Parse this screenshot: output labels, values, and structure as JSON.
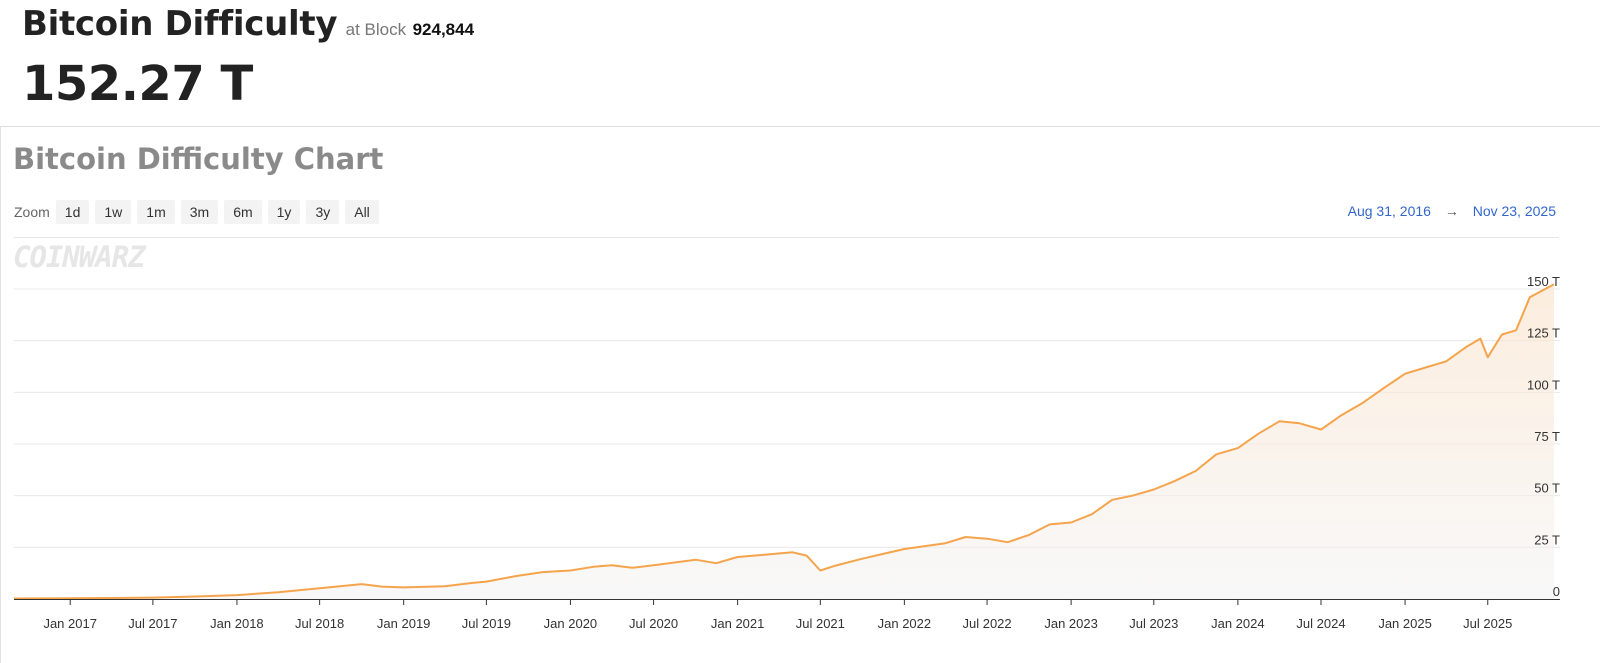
{
  "header": {
    "title": "Bitcoin Difficulty",
    "at_block_label": "at Block",
    "block_number": "924,844",
    "current_value": "152.27 T"
  },
  "chart_section": {
    "title": "Bitcoin Difficulty Chart",
    "zoom_label": "Zoom",
    "zoom_buttons": [
      "1d",
      "1w",
      "1m",
      "3m",
      "6m",
      "1y",
      "3y",
      "All"
    ],
    "range_start": "Aug 31, 2016",
    "range_arrow": "→",
    "range_end": "Nov 23, 2025",
    "watermark": "COINWARZ"
  },
  "chart_data": {
    "type": "area",
    "title": "",
    "xlabel": "",
    "ylabel": "",
    "unit": "T",
    "xlim": [
      "2016-08-31",
      "2025-11-23"
    ],
    "ylim": [
      0,
      150
    ],
    "grid": true,
    "legend": "none",
    "series_color": "#f5a44c",
    "x_ticks": [
      "Jan 2017",
      "Jul 2017",
      "Jan 2018",
      "Jul 2018",
      "Jan 2019",
      "Jul 2019",
      "Jan 2020",
      "Jul 2020",
      "Jan 2021",
      "Jul 2021",
      "Jan 2022",
      "Jul 2022",
      "Jan 2023",
      "Jul 2023",
      "Jan 2024",
      "Jul 2024",
      "Jan 2025",
      "Jul 2025"
    ],
    "y_ticks": [
      {
        "value": 0,
        "label": "0"
      },
      {
        "value": 25,
        "label": "25 T"
      },
      {
        "value": 50,
        "label": "50 T"
      },
      {
        "value": 75,
        "label": "75 T"
      },
      {
        "value": 100,
        "label": "100 T"
      },
      {
        "value": 125,
        "label": "125 T"
      },
      {
        "value": 150,
        "label": "150 T"
      }
    ],
    "series": [
      {
        "x": [
          "2016-08-31",
          "2017-01-01",
          "2017-04-01",
          "2017-07-01",
          "2017-10-01",
          "2018-01-01",
          "2018-04-01",
          "2018-07-01",
          "2018-10-01",
          "2018-11-15",
          "2019-01-01",
          "2019-04-01",
          "2019-06-01",
          "2019-07-01",
          "2019-09-01",
          "2019-11-01",
          "2020-01-01",
          "2020-02-20",
          "2020-04-01",
          "2020-05-15",
          "2020-07-01",
          "2020-10-01",
          "2020-11-15",
          "2021-01-01",
          "2021-03-01",
          "2021-05-01",
          "2021-06-01",
          "2021-07-01",
          "2021-08-01",
          "2021-10-01",
          "2022-01-01",
          "2022-04-01",
          "2022-05-15",
          "2022-07-01",
          "2022-08-15",
          "2022-10-01",
          "2022-11-15",
          "2023-01-01",
          "2023-02-15",
          "2023-04-01",
          "2023-05-15",
          "2023-07-01",
          "2023-08-15",
          "2023-10-01",
          "2023-11-15",
          "2024-01-01",
          "2024-02-15",
          "2024-04-01",
          "2024-05-15",
          "2024-07-01",
          "2024-08-15",
          "2024-10-01",
          "2024-11-15",
          "2025-01-01",
          "2025-02-15",
          "2025-04-01",
          "2025-05-15",
          "2025-06-15",
          "2025-07-01",
          "2025-08-01",
          "2025-09-01",
          "2025-10-01",
          "2025-11-23"
        ],
        "y": [
          0.25,
          0.32,
          0.5,
          0.7,
          1.2,
          1.9,
          3.3,
          5.2,
          7.2,
          6.0,
          5.6,
          6.2,
          7.8,
          8.4,
          11.0,
          13.0,
          13.8,
          15.6,
          16.3,
          15.1,
          16.3,
          19.0,
          17.3,
          20.3,
          21.4,
          22.6,
          21.0,
          13.8,
          16.0,
          19.5,
          24.2,
          27.0,
          30.0,
          29.2,
          27.5,
          31.0,
          36.1,
          37.0,
          41.0,
          48.0,
          50.0,
          53.0,
          57.0,
          62.0,
          70.0,
          73.0,
          80.0,
          86.0,
          85.0,
          82.0,
          89.0,
          95.0,
          102.0,
          109.0,
          112.0,
          115.0,
          122.0,
          126.0,
          117.0,
          128.0,
          130.0,
          146.0,
          152.27
        ]
      }
    ]
  }
}
